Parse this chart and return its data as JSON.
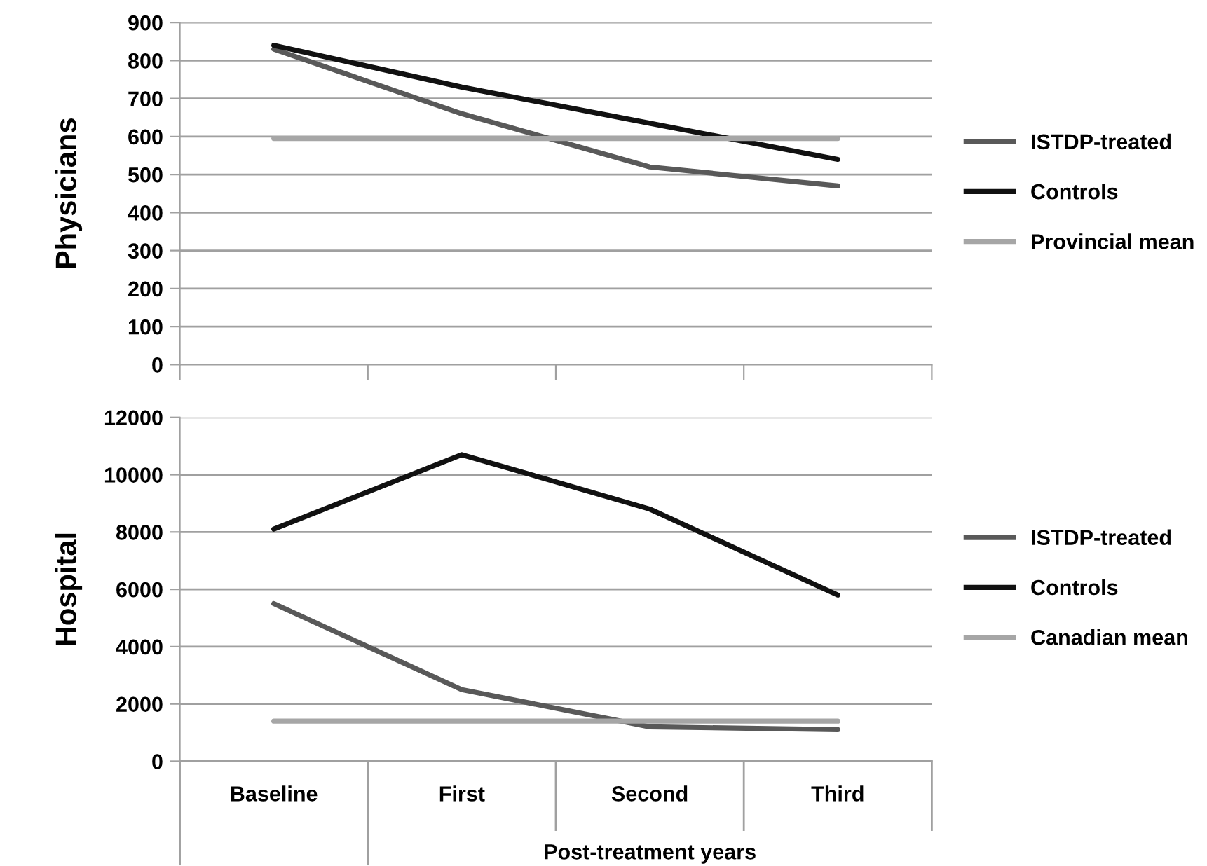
{
  "chart_data": [
    {
      "type": "line",
      "ylabel": "Physicians",
      "categories": [
        null,
        null,
        null,
        null
      ],
      "ylim": [
        0,
        900
      ],
      "yticks": [
        0,
        100,
        200,
        300,
        400,
        500,
        600,
        700,
        800,
        900
      ],
      "grid": "y",
      "legend": "right",
      "marker": "none",
      "line_style": "solid",
      "tick_labels": "y",
      "series": [
        {
          "name": "ISTDP-treated",
          "color": "#595959",
          "values": [
            830,
            660,
            520,
            470
          ]
        },
        {
          "name": "Controls",
          "color": "#111111",
          "values": [
            840,
            730,
            635,
            540
          ]
        },
        {
          "name": "Provincial mean",
          "color": "#a6a6a6",
          "values": [
            595,
            595,
            595,
            595
          ]
        }
      ]
    },
    {
      "type": "line",
      "ylabel": "Hospital",
      "xlabel": "Post-treatment years",
      "categories": [
        "Baseline",
        "First",
        "Second",
        "Third"
      ],
      "ylim": [
        0,
        12000
      ],
      "yticks": [
        0,
        2000,
        4000,
        6000,
        8000,
        10000,
        12000
      ],
      "grid": "y",
      "legend": "right",
      "marker": "none",
      "line_style": "solid",
      "series": [
        {
          "name": "ISTDP-treated",
          "color": "#595959",
          "values": [
            5500,
            2500,
            1200,
            1100
          ]
        },
        {
          "name": "Controls",
          "color": "#111111",
          "values": [
            8100,
            10700,
            8800,
            5800
          ]
        },
        {
          "name": "Canadian mean",
          "color": "#a6a6a6",
          "values": [
            1400,
            1400,
            1400,
            1400
          ]
        }
      ]
    }
  ]
}
